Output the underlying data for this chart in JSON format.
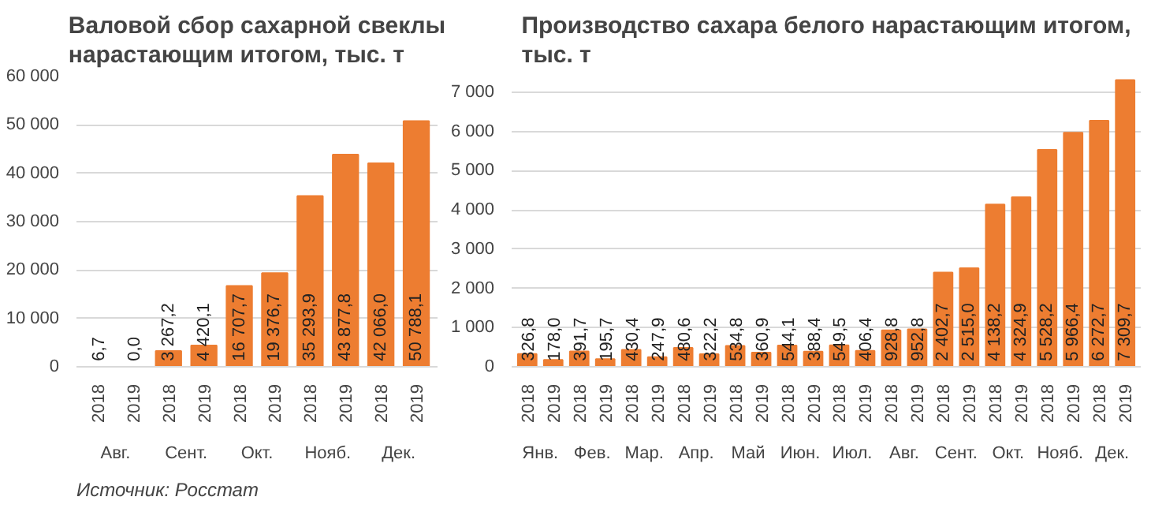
{
  "chart_data": [
    {
      "type": "bar",
      "title": "Валовой сбор сахарной свеклы нарастающим итогом, тыс. т",
      "categories": [
        "2018",
        "2019",
        "2018",
        "2019",
        "2018",
        "2019",
        "2018",
        "2019",
        "2018",
        "2019"
      ],
      "values": [
        6.7,
        0.0,
        3267.2,
        4420.1,
        16707.7,
        19376.7,
        35293.9,
        43877.8,
        42066.0,
        50788.1
      ],
      "value_labels": [
        "6,7",
        "0,0",
        "3 267,2",
        "4 420,1",
        "16 707,7",
        "19 376,7",
        "35 293,9",
        "43 877,8",
        "42 066,0",
        "50 788,1"
      ],
      "color": "#ed7d31",
      "ylim": [
        0,
        60000
      ],
      "yticks": [
        0,
        {
          "value": 10000,
          "label": "10 000"
        },
        {
          "value": 20000,
          "label": "20 000"
        },
        {
          "value": 30000,
          "label": "30 000"
        },
        {
          "value": 40000,
          "label": "40 000"
        },
        {
          "value": 50000,
          "label": "50 000"
        },
        {
          "value": 60000,
          "label": "60 000"
        }
      ],
      "grid": "y",
      "annotations": [
        "Авг.",
        "Сент.",
        "Окт.",
        "Нояб.",
        "Дек.",
        "Источник: Росстат"
      ]
    },
    {
      "type": "bar",
      "title": "Производство сахара белого нарастающим итогом, тыс. т",
      "categories": [
        "2018",
        "2019",
        "2018",
        "2019",
        "2018",
        "2019",
        "2018",
        "2019",
        "2018",
        "2019",
        "2018",
        "2019",
        "2018",
        "2019",
        "2018",
        "2019",
        "2018",
        "2019",
        "2018",
        "2019",
        "2018",
        "2019",
        "2018",
        "2019"
      ],
      "values": [
        326.8,
        178.0,
        391.7,
        195.7,
        430.4,
        247.9,
        480.6,
        322.2,
        534.8,
        360.9,
        544.1,
        388.4,
        549.5,
        406.4,
        928.8,
        952.8,
        2402.7,
        2515.0,
        4138.2,
        4324.9,
        5528.2,
        5966.4,
        6272.7,
        7309.7
      ],
      "value_labels": [
        "326,8",
        "178,0",
        "391,7",
        "195,7",
        "430,4",
        "247,9",
        "480,6",
        "322,2",
        "534,8",
        "360,9",
        "544,1",
        "388,4",
        "549,5",
        "406,4",
        "928,8",
        "952,8",
        "2 402,7",
        "2 515,0",
        "4 138,2",
        "4 324,9",
        "5 528,2",
        "5 966,4",
        "6 272,7",
        "7 309,7"
      ],
      "color": "#ed7d31",
      "ylim": [
        0,
        7400
      ],
      "yticks": [
        0,
        {
          "value": 1000,
          "label": "1 000"
        },
        {
          "value": 2000,
          "label": "2 000"
        },
        {
          "value": 3000,
          "label": "3 000"
        },
        {
          "value": 4000,
          "label": "4 000"
        },
        {
          "value": 5000,
          "label": "5 000"
        },
        {
          "value": 6000,
          "label": "6 000"
        },
        {
          "value": 7000,
          "label": "7 000"
        }
      ],
      "grid": "y",
      "annotations": [
        "Янв.",
        "Фев.",
        "Мар.",
        "Апр.",
        "Май",
        "Июн.",
        "Июл.",
        "Авг.",
        "Сент.",
        "Окт.",
        "Нояб.",
        "Дек."
      ]
    }
  ]
}
